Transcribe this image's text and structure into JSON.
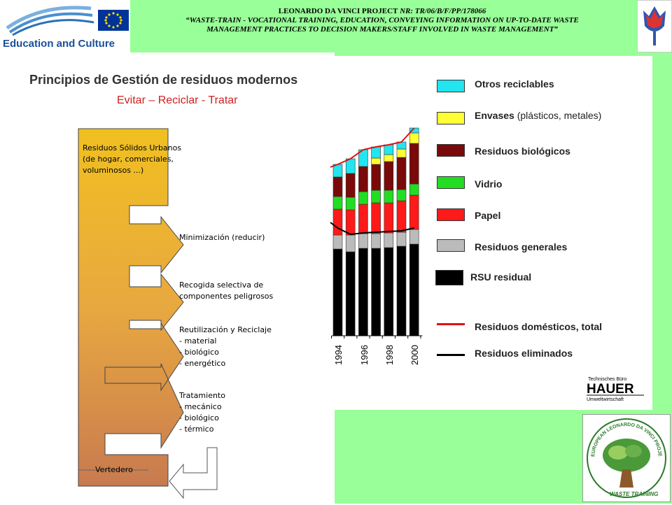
{
  "header": {
    "brand": "Education and Culture",
    "line1_a": "LEONARDO DA VINCI PROJECT",
    "line1_b": "NR: TR/06/B/F/PP/178066",
    "line2": "“WASTE-TRAIN - VOCATIONAL TRAINING, EDUCATION, CONVEYING INFORMATION ON UP-TO-DATE WASTE",
    "line3": "MANAGEMENT PRACTICES TO DECISION MAKERS/STAFF INVOLVED IN WASTE MANAGEMENT”"
  },
  "slide": {
    "title": "Principios de Gestión de residuos modernos",
    "subtitle": "Evitar – Reciclar - Tratar"
  },
  "flow": {
    "source": [
      "Residuos Sólidos Urbanos",
      "(de hogar, comerciales,",
      "voluminosos ...)"
    ],
    "steps": [
      {
        "lines": [
          "Minimización (reducir)"
        ]
      },
      {
        "lines": [
          "Recogida selectiva de",
          "componentes peligrosos"
        ]
      },
      {
        "lines": [
          "Reutilización y Reciclaje",
          "- material",
          "- biológico",
          "- energético"
        ]
      },
      {
        "lines": [
          "Tratamiento",
          "- mecánico",
          "- biológico",
          "- térmico"
        ]
      }
    ],
    "landfill": "Vertedero"
  },
  "legend": {
    "items": [
      {
        "label": "Otros reciclables",
        "extra": "",
        "color": "#22e5f0",
        "kind": "box"
      },
      {
        "label": "Envases",
        "extra": " (plásticos, metales)",
        "color": "#ffff33",
        "kind": "box"
      },
      {
        "label": "Residuos biológicos",
        "extra": "",
        "color": "#7a0a0a",
        "kind": "box"
      },
      {
        "label": "Vidrio",
        "extra": "",
        "color": "#22dd22",
        "kind": "box"
      },
      {
        "label": "Papel",
        "extra": "",
        "color": "#ff1a1a",
        "kind": "box"
      },
      {
        "label": "Residuos generales",
        "extra": "",
        "color": "#bbbbbb",
        "kind": "box"
      },
      {
        "label": "RSU residual",
        "extra": "",
        "color": "#000000",
        "kind": "box"
      },
      {
        "label": "Residuos domésticos, total",
        "extra": "",
        "color": "#dd1111",
        "kind": "line"
      },
      {
        "label": "Residuos eliminados",
        "extra": "",
        "color": "#000000",
        "kind": "line"
      }
    ]
  },
  "chart_data": {
    "type": "bar",
    "stacked": true,
    "categories": [
      "1994",
      "1995",
      "1996",
      "1997",
      "1998",
      "1999",
      "2000"
    ],
    "tick_labels": [
      "1994",
      "1996",
      "1998",
      "2000"
    ],
    "series": [
      {
        "name": "RSU residual",
        "color": "#000000",
        "values": [
          124,
          120,
          125,
          125,
          126,
          128,
          131
        ]
      },
      {
        "name": "Residuos generales",
        "color": "#bbbbbb",
        "values": [
          20,
          24,
          21,
          21,
          21,
          20,
          21
        ]
      },
      {
        "name": "Papel",
        "color": "#ff1a1a",
        "values": [
          37,
          36,
          42,
          44,
          43,
          45,
          49
        ]
      },
      {
        "name": "Vidrio",
        "color": "#22dd22",
        "values": [
          18,
          18,
          18,
          18,
          18,
          16,
          16
        ]
      },
      {
        "name": "Residuos biológicos",
        "color": "#7a0a0a",
        "values": [
          28,
          34,
          36,
          37,
          41,
          46,
          58
        ]
      },
      {
        "name": "Envases",
        "color": "#ffff33",
        "values": [
          0,
          0,
          0,
          9,
          10,
          12,
          15
        ]
      },
      {
        "name": "Otros reciclables",
        "color": "#22e5f0",
        "values": [
          18,
          21,
          24,
          16,
          14,
          10,
          7
        ]
      }
    ],
    "lines": [
      {
        "name": "Residuos domésticos, total",
        "color": "#dd1111",
        "values": [
          245,
          253,
          266,
          270,
          273,
          277,
          297
        ]
      },
      {
        "name": "Residuos eliminados",
        "color": "#000000",
        "values": [
          154,
          145,
          147,
          148,
          149,
          150,
          154
        ]
      }
    ],
    "ylim": [
      0,
      300
    ],
    "y_axis_shown": false
  }
}
